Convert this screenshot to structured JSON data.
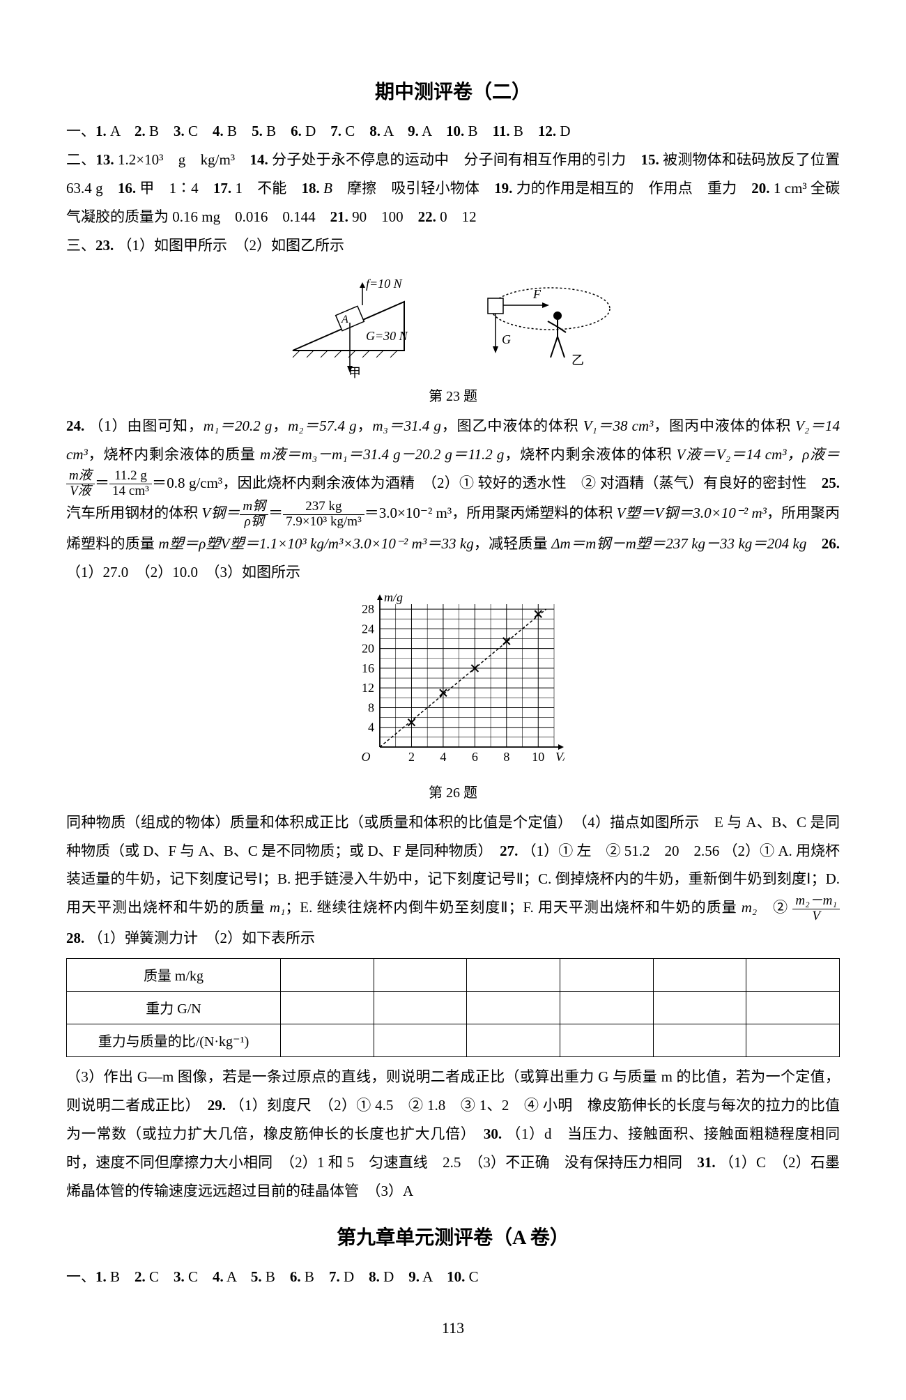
{
  "page_number": "113",
  "title1": "期中测评卷（二）",
  "title2": "第九章单元测评卷（A 卷）",
  "sec1_mc": {
    "label": "一、",
    "answers": [
      {
        "n": "1",
        "a": "A"
      },
      {
        "n": "2",
        "a": "B"
      },
      {
        "n": "3",
        "a": "C"
      },
      {
        "n": "4",
        "a": "B"
      },
      {
        "n": "5",
        "a": "B"
      },
      {
        "n": "6",
        "a": "D"
      },
      {
        "n": "7",
        "a": "C"
      },
      {
        "n": "8",
        "a": "A"
      },
      {
        "n": "9",
        "a": "A"
      },
      {
        "n": "10",
        "a": "B"
      },
      {
        "n": "11",
        "a": "B"
      },
      {
        "n": "12",
        "a": "D"
      }
    ]
  },
  "sec2": {
    "label": "二、",
    "q13": {
      "n": "13",
      "text": "1.2×10³　g　kg/m³"
    },
    "q14": {
      "n": "14",
      "text": "分子处于永不停息的运动中　分子间有相互作用的引力"
    },
    "q15": {
      "n": "15",
      "text": "被测物体和砝码放反了位置　63.4 g"
    },
    "q16": {
      "n": "16",
      "text": "甲　1∶4"
    },
    "q17": {
      "n": "17",
      "text": "1　不能"
    },
    "q18": {
      "n": "18",
      "text_i": "B",
      "text": "　摩擦　吸引轻小物体"
    },
    "q19": {
      "n": "19",
      "text": "力的作用是相互的　作用点　重力"
    },
    "q20": {
      "n": "20",
      "text": "1 cm³ 全碳气凝胶的质量为 0.16 mg　0.016　0.144"
    },
    "q21": {
      "n": "21",
      "text": "90　100"
    },
    "q22": {
      "n": "22",
      "text": "0　12"
    }
  },
  "sec3": {
    "label": "三、",
    "q23": {
      "n": "23",
      "text": "（1）如图甲所示　（2）如图乙所示"
    }
  },
  "fig23": {
    "caption": "第 23 题",
    "f_label": "f=10 N",
    "G_label": "G=30 N",
    "jia": "甲",
    "F": "F",
    "G": "G",
    "yi": "乙",
    "A": "A",
    "colors": {
      "line": "#000000",
      "fill": "#ffffff"
    }
  },
  "q24": {
    "n": "24",
    "l1": "（1）由图可知，",
    "m1": "m₁＝20.2 g",
    "m2": "m₂＝57.4 g",
    "m3": "m₃＝31.4 g",
    "l2": "，图乙中液体的体积 ",
    "V1": "V₁＝38 cm³",
    "l3": "，图丙中液体的体积",
    "V2a": "V₂＝14 cm³",
    "l4": "，烧杯内剩余液体的质量 ",
    "mcalc": "m液＝m₃－m₁＝31.4 g－20.2 g＝11.2 g",
    "l5": "，烧杯内剩余液体的体积 ",
    "Vcalc": "V液＝",
    "V2b": "V₂＝14 cm³，",
    "rho_eq_pre": "ρ液＝",
    "frac1_num": "m液",
    "frac1_den": "V液",
    "frac2_num": "11.2 g",
    "frac2_den": "14 cm³",
    "rho_val": "＝0.8 g/cm³，因此烧杯内剩余液体为酒精",
    "part2_a": "（2）① 较好的透水性　② 对酒精（蒸气）有良好的密封性"
  },
  "q25": {
    "n": "25",
    "pre": "汽车所用钢材的体积 ",
    "Vlabel": "V钢＝",
    "f1_num": "m钢",
    "f1_den": "ρ钢",
    "f2_num": "237 kg",
    "f2_den": "7.9×10³ kg/m³",
    "eq1": "＝3.0×10⁻² m³，所用聚丙烯塑料的体积 ",
    "Vp": "V塑＝V钢＝3.0×10⁻² m³",
    "eq2": "，所用聚丙烯塑料的质量 ",
    "mp": "m塑＝ρ塑V塑＝1.1×10³ kg/m³×3.0×10⁻² m³＝33 kg",
    "eq3": "，减轻质量 ",
    "dm": "Δm＝m钢－m塑＝237 kg－33 kg＝204 kg"
  },
  "q26": {
    "n": "26",
    "parts": "（1）27.0　（2）10.0　（3）如图所示",
    "caption": "第 26 题",
    "chart": {
      "type": "scatter-line",
      "xlabel": "V/cm³",
      "ylabel": "m/g",
      "xlim": [
        0,
        11
      ],
      "ylim": [
        0,
        29
      ],
      "xticks": [
        2,
        4,
        6,
        8,
        10
      ],
      "yticks": [
        4,
        8,
        12,
        16,
        20,
        24,
        28
      ],
      "grid_span_x": [
        0,
        11
      ],
      "grid_span_y": [
        0,
        29
      ],
      "points": [
        {
          "x": 2,
          "y": 5
        },
        {
          "x": 4,
          "y": 11
        },
        {
          "x": 6,
          "y": 16
        },
        {
          "x": 8,
          "y": 21.5
        },
        {
          "x": 10,
          "y": 27
        }
      ],
      "line": [
        {
          "x": 0,
          "y": 0
        },
        {
          "x": 10.5,
          "y": 28
        }
      ],
      "marker": "x",
      "line_dash": "4,3",
      "colors": {
        "grid": "#000000",
        "axis": "#000000",
        "line": "#000000",
        "marker": "#000000",
        "bg": "#ffffff"
      },
      "fontsize": 18
    },
    "post": "同种物质（组成的物体）质量和体积成正比（或质量和体积的比值是个定值）　（4）描点如图所示　E 与 A、B、C 是同种物质（或 D、F 与 A、B、C 是不同物质；或 D、F 是同种物质）"
  },
  "q27": {
    "n": "27",
    "p1": "（1）① 左　② 51.2　20　2.56",
    "p2a": "（2）① A. 用烧杯装适量的牛奶，记下刻度记号Ⅰ；B. 把手链浸入牛奶中，记下刻度记号Ⅱ；C. 倒掉烧杯内的牛奶，重新倒牛奶到刻度Ⅰ；D. 用天平测出烧杯和牛奶的质量 ",
    "m1": "m₁",
    "p2b": "；E. 继续往烧杯内倒牛奶至刻度Ⅱ；F. 用天平测出烧杯和牛奶的质量 ",
    "m2": "m₂",
    "p3": "　② ",
    "f_num": "m₂－m₁",
    "f_den": "V"
  },
  "q28": {
    "n": "28",
    "p1": "（1）弹簧测力计　（2）如下表所示",
    "table": {
      "rows": [
        "质量 m/kg",
        "重力 G/N",
        "重力与质量的比/(N·kg⁻¹)"
      ],
      "cols": 6
    },
    "p2": "（3）作出 G—m 图像，若是一条过原点的直线，则说明二者成正比（或算出重力 G 与质量 m 的比值，若为一个定值，则说明二者成正比）"
  },
  "q29": {
    "n": "29",
    "text": "（1）刻度尺　（2）① 4.5　② 1.8　③ 1、2　④ 小明　橡皮筋伸长的长度与每次的拉力的比值为一常数（或拉力扩大几倍，橡皮筋伸长的长度也扩大几倍）"
  },
  "q30": {
    "n": "30",
    "text": "（1）d　当压力、接触面积、接触面粗糙程度相同时，速度不同但摩擦力大小相同　（2）1 和 5　匀速直线　2.5　（3）不正确　没有保持压力相同"
  },
  "q31": {
    "n": "31",
    "text": "（1）C　（2）石墨烯晶体管的传输速度远远超过目前的硅晶体管　（3）A"
  },
  "sec9_mc": {
    "label": "一、",
    "answers": [
      {
        "n": "1",
        "a": "B"
      },
      {
        "n": "2",
        "a": "C"
      },
      {
        "n": "3",
        "a": "C"
      },
      {
        "n": "4",
        "a": "A"
      },
      {
        "n": "5",
        "a": "B"
      },
      {
        "n": "6",
        "a": "B"
      },
      {
        "n": "7",
        "a": "D"
      },
      {
        "n": "8",
        "a": "D"
      },
      {
        "n": "9",
        "a": "A"
      },
      {
        "n": "10",
        "a": "C"
      }
    ]
  }
}
